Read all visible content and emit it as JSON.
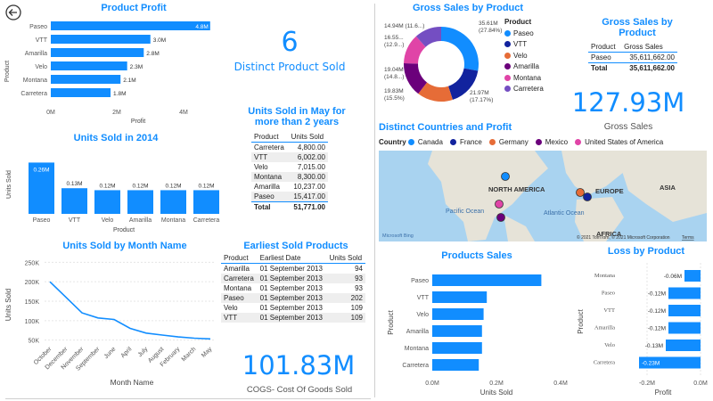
{
  "back_button": {
    "icon": "back-arrow-icon"
  },
  "product_profit": {
    "title": "Product Profit",
    "ylabel": "Product",
    "xlabel": "Profit",
    "ticks": [
      "0M",
      "2M",
      "4M"
    ],
    "bar_color": "#118DFF"
  },
  "kpi_products": {
    "value": "6",
    "label": "Distinct Product Sold"
  },
  "units_may": {
    "title": "Units Sold in May for more than 2 years",
    "headers": [
      "Product",
      "Units Sold"
    ],
    "rows": [
      [
        "Carretera",
        "4,800.00"
      ],
      [
        "VTT",
        "6,002.00"
      ],
      [
        "Velo",
        "7,015.00"
      ],
      [
        "Montana",
        "8,300.00"
      ],
      [
        "Amarilla",
        "10,237.00"
      ],
      [
        "Paseo",
        "15,417.00"
      ]
    ],
    "total": [
      "Total",
      "51,771.00"
    ]
  },
  "gross_sales_product_tbl": {
    "title": "Gross Sales by Product",
    "headers": [
      "Product",
      "Gross Sales"
    ],
    "rows": [
      [
        "Paseo",
        "35,611,662.00"
      ]
    ],
    "total": [
      "Total",
      "35,611,662.00"
    ]
  },
  "kpi_gross": {
    "value": "127.93M",
    "label": "Gross Sales"
  },
  "kpi_cogs": {
    "value": "101.83M",
    "label": "COGS- Cost Of Goods Sold"
  },
  "units_2014": {
    "title": "Units Sold in 2014",
    "ylabel": "Units Sold",
    "xlabel": "Product"
  },
  "by_month": {
    "title": "Units Sold by Month Name",
    "ylabel": "Units Sold",
    "xlabel": "Month Name",
    "yticks": [
      "250K",
      "200K",
      "150K",
      "100K",
      "50K"
    ]
  },
  "earliest": {
    "title": "Earliest Sold Products",
    "headers": [
      "Product",
      "Earliest Date",
      "Units Sold"
    ],
    "rows": [
      [
        "Amarilla",
        "01 September 2013",
        "94"
      ],
      [
        "Carretera",
        "01 September 2013",
        "93"
      ],
      [
        "Montana",
        "01 September 2013",
        "93"
      ],
      [
        "Paseo",
        "01 September 2013",
        "202"
      ],
      [
        "Velo",
        "01 September 2013",
        "109"
      ],
      [
        "VTT",
        "01 September 2013",
        "109"
      ]
    ]
  },
  "donut": {
    "title": "Gross Sales by Product",
    "legend_title": "Product",
    "labels": [
      {
        "text": "35.61M",
        "text2": "(27.84%)"
      },
      {
        "text": "21.97M",
        "text2": "(17.17%)"
      },
      {
        "text": "19.83M",
        "text2": "(15.5%)"
      },
      {
        "text": "19.04M",
        "text2": "(14.8...)"
      },
      {
        "text": "16.55...",
        "text2": "(12.9...)"
      },
      {
        "text": "14.94M (11.6...)",
        "text2": ""
      }
    ]
  },
  "map": {
    "title": "Distinct Countries and Profit",
    "legend_title": "Country",
    "labels": {
      "na": "NORTH AMERICA",
      "eu": "EUROPE",
      "asia": "ASIA",
      "africa": "AFRICA",
      "pacific": "Pacific Ocean",
      "atlantic": "Atlantic Ocean"
    },
    "attribution": "© 2021 TomTom, © 2021 Microsoft Corporation",
    "terms": "Terms",
    "bing": "Microsoft Bing"
  },
  "products_sales": {
    "title": "Products Sales",
    "ylabel": "Product",
    "xlabel": "Units Sold",
    "ticks": [
      "0.0M",
      "0.2M",
      "0.4M"
    ]
  },
  "loss": {
    "title": "Loss by Product",
    "ylabel": "Product",
    "xlabel": "Profit",
    "ticks": [
      "-0.2M",
      "0.0M"
    ]
  },
  "chart_data": [
    {
      "type": "bar",
      "id": "product_profit",
      "title": "Product Profit",
      "categories": [
        "Paseo",
        "VTT",
        "Amarilla",
        "Velo",
        "Montana",
        "Carretera"
      ],
      "values": [
        4.8,
        3.0,
        2.8,
        2.3,
        2.1,
        1.8
      ],
      "labels": [
        "4.8M",
        "3.0M",
        "2.8M",
        "2.3M",
        "2.1M",
        "1.8M"
      ],
      "xlim": [
        0,
        5.2
      ],
      "xlabel": "Profit",
      "ylabel": "Product"
    },
    {
      "type": "bar",
      "id": "units_2014",
      "title": "Units Sold in 2014",
      "categories": [
        "Paseo",
        "VTT",
        "Velo",
        "Amarilla",
        "Montana",
        "Carretera"
      ],
      "values": [
        0.26,
        0.13,
        0.12,
        0.12,
        0.12,
        0.12
      ],
      "labels": [
        "0.26M",
        "0.13M",
        "0.12M",
        "0.12M",
        "0.12M",
        "0.12M"
      ],
      "ylim": [
        0,
        0.28
      ],
      "xlabel": "Product",
      "ylabel": "Units Sold"
    },
    {
      "type": "line",
      "id": "by_month",
      "title": "Units Sold by Month Name",
      "x": [
        "October",
        "December",
        "November",
        "September",
        "June",
        "April",
        "July",
        "August",
        "February",
        "March",
        "May"
      ],
      "values": [
        200,
        160,
        120,
        107,
        103,
        80,
        68,
        63,
        58,
        55,
        53
      ],
      "ylim": [
        40,
        260
      ],
      "xlabel": "Month Name",
      "ylabel": "Units Sold"
    },
    {
      "type": "pie",
      "id": "donut",
      "title": "Gross Sales by Product",
      "categories": [
        "Paseo",
        "VTT",
        "Velo",
        "Amarilla",
        "Montana",
        "Carretera"
      ],
      "values": [
        35.61,
        21.97,
        19.83,
        19.04,
        16.55,
        14.94
      ],
      "colors": [
        "#118DFF",
        "#12239E",
        "#E66C37",
        "#6B007B",
        "#E044A7",
        "#744EC2"
      ]
    },
    {
      "type": "scatter",
      "id": "map",
      "title": "Distinct Countries and Profit",
      "categories": [
        "Canada",
        "France",
        "Germany",
        "Mexico",
        "United States of America"
      ],
      "colors": [
        "#118DFF",
        "#12239E",
        "#E66C37",
        "#6B007B",
        "#E044A7"
      ]
    },
    {
      "type": "bar",
      "id": "products_sales",
      "title": "Products Sales",
      "categories": [
        "Paseo",
        "VTT",
        "Velo",
        "Amarilla",
        "Montana",
        "Carretera"
      ],
      "values": [
        0.34,
        0.17,
        0.16,
        0.155,
        0.155,
        0.145
      ],
      "xlim": [
        0,
        0.4
      ],
      "xlabel": "Units Sold",
      "ylabel": "Product"
    },
    {
      "type": "bar",
      "id": "loss",
      "title": "Loss by Product",
      "categories": [
        "Montana",
        "Paseo",
        "VTT",
        "Amarilla",
        "Velo",
        "Carretera"
      ],
      "values": [
        -0.06,
        -0.12,
        -0.12,
        -0.12,
        -0.13,
        -0.23
      ],
      "labels": [
        "-0.06M",
        "-0.12M",
        "-0.12M",
        "-0.12M",
        "-0.13M",
        "-0.23M"
      ],
      "xlim": [
        -0.25,
        0
      ],
      "xlabel": "Profit",
      "ylabel": "Product"
    }
  ]
}
